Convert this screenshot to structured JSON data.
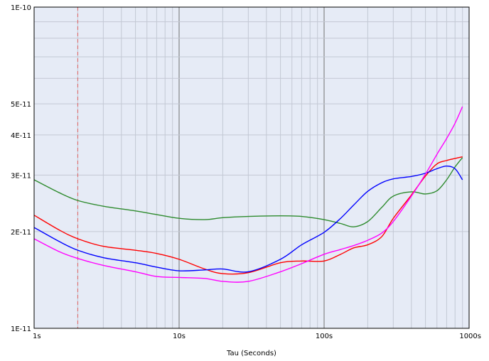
{
  "chart_data": {
    "type": "line",
    "title": "",
    "xlabel": "Tau (Seconds)",
    "ylabel": "",
    "xscale": "log",
    "yscale": "log",
    "xlim": [
      1,
      1000
    ],
    "ylim": [
      1e-11,
      1e-10
    ],
    "x_ticks": [
      {
        "value": 1,
        "label": "1s"
      },
      {
        "value": 10,
        "label": "10s"
      },
      {
        "value": 100,
        "label": "100s"
      },
      {
        "value": 1000,
        "label": "1000s"
      }
    ],
    "y_ticks": [
      {
        "value": 1e-10,
        "label": "1E-10"
      },
      {
        "value": 5e-11,
        "label": "5E-11"
      },
      {
        "value": 4e-11,
        "label": "4E-11"
      },
      {
        "value": 3e-11,
        "label": "3E-11"
      },
      {
        "value": 2e-11,
        "label": "2E-11"
      },
      {
        "value": 1e-11,
        "label": "1E-11"
      }
    ],
    "grid": true,
    "background_color": "#e6ebf6",
    "marker_line": {
      "x": 2,
      "color": "#e06060",
      "style": "dashed"
    },
    "series": [
      {
        "color": "#2e8b2e",
        "x": [
          1,
          1.5,
          2,
          3,
          5,
          7,
          10,
          15,
          20,
          30,
          50,
          70,
          100,
          130,
          160,
          200,
          250,
          300,
          400,
          500,
          600,
          700,
          800,
          900
        ],
        "y": [
          2.9e-11,
          2.64e-11,
          2.5e-11,
          2.4e-11,
          2.32e-11,
          2.26e-11,
          2.2e-11,
          2.18e-11,
          2.21e-11,
          2.23e-11,
          2.24e-11,
          2.23e-11,
          2.18e-11,
          2.12e-11,
          2.07e-11,
          2.15e-11,
          2.38e-11,
          2.58e-11,
          2.66e-11,
          2.62e-11,
          2.68e-11,
          2.9e-11,
          3.18e-11,
          3.4e-11
        ]
      },
      {
        "color": "#ff0000",
        "x": [
          1,
          1.5,
          2,
          3,
          5,
          7,
          10,
          15,
          20,
          30,
          50,
          70,
          100,
          130,
          160,
          200,
          250,
          300,
          400,
          500,
          600,
          700,
          800,
          900
        ],
        "y": [
          2.25e-11,
          2.02e-11,
          1.9e-11,
          1.8e-11,
          1.75e-11,
          1.71e-11,
          1.64e-11,
          1.53e-11,
          1.48e-11,
          1.49e-11,
          1.6e-11,
          1.62e-11,
          1.62e-11,
          1.7e-11,
          1.78e-11,
          1.82e-11,
          1.93e-11,
          2.2e-11,
          2.6e-11,
          2.98e-11,
          3.25e-11,
          3.33e-11,
          3.38e-11,
          3.42e-11
        ]
      },
      {
        "color": "#0000ff",
        "x": [
          1,
          1.5,
          2,
          3,
          5,
          7,
          10,
          15,
          20,
          30,
          50,
          70,
          100,
          130,
          160,
          200,
          250,
          300,
          400,
          500,
          600,
          700,
          800,
          900
        ],
        "y": [
          2.06e-11,
          1.86e-11,
          1.75e-11,
          1.66e-11,
          1.6e-11,
          1.55e-11,
          1.51e-11,
          1.52e-11,
          1.53e-11,
          1.5e-11,
          1.64e-11,
          1.82e-11,
          1.99e-11,
          2.2e-11,
          2.42e-11,
          2.67e-11,
          2.84e-11,
          2.92e-11,
          2.97e-11,
          3.04e-11,
          3.14e-11,
          3.2e-11,
          3.14e-11,
          2.9e-11
        ]
      },
      {
        "color": "#ff00ff",
        "x": [
          1,
          1.5,
          2,
          3,
          5,
          7,
          10,
          15,
          20,
          30,
          50,
          70,
          100,
          130,
          160,
          200,
          250,
          300,
          400,
          500,
          600,
          700,
          800,
          900
        ],
        "y": [
          1.9e-11,
          1.73e-11,
          1.65e-11,
          1.57e-11,
          1.5e-11,
          1.45e-11,
          1.44e-11,
          1.43e-11,
          1.4e-11,
          1.4e-11,
          1.5e-11,
          1.59e-11,
          1.7e-11,
          1.76e-11,
          1.81e-11,
          1.88e-11,
          1.98e-11,
          2.15e-11,
          2.58e-11,
          3.02e-11,
          3.48e-11,
          3.9e-11,
          4.35e-11,
          4.9e-11
        ]
      }
    ]
  }
}
